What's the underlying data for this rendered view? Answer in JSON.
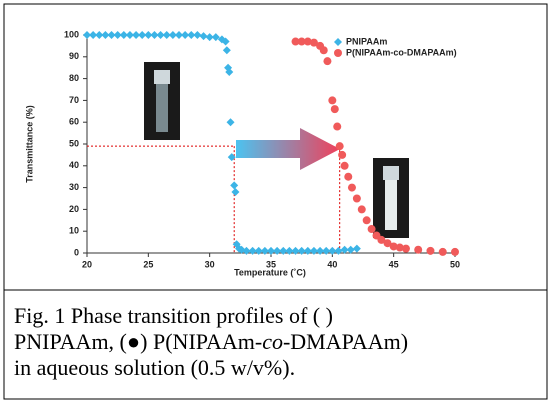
{
  "chart_data": {
    "type": "scatter",
    "xlabel": "Temperature (˚C)",
    "ylabel": "Transmittance (%)",
    "xlim": [
      20,
      50
    ],
    "ylim": [
      0,
      100
    ],
    "xticks": [
      20,
      25,
      30,
      35,
      40,
      45,
      50
    ],
    "yticks": [
      0,
      10,
      20,
      30,
      40,
      50,
      60,
      70,
      80,
      90,
      100
    ],
    "legend": "top-right",
    "guides": {
      "y": 49,
      "x": [
        32,
        40.6
      ]
    },
    "series": [
      {
        "name": "PNIPAAm",
        "color": "#3cb4e6",
        "marker": "diamond",
        "x": [
          20,
          20.5,
          21,
          21.5,
          22,
          22.5,
          23,
          23.5,
          24,
          24.5,
          25,
          25.5,
          26,
          26.5,
          27,
          27.5,
          28,
          28.5,
          29,
          29.5,
          30,
          30.5,
          31,
          31.3,
          31.4,
          31.5,
          31.6,
          31.7,
          31.8,
          32,
          32.1,
          32.2,
          32.4,
          32.6,
          33,
          33.5,
          34,
          34.5,
          35,
          35.5,
          36,
          36.5,
          37,
          37.5,
          38,
          38.5,
          39,
          39.5,
          40,
          40.5,
          41,
          41.5,
          42
        ],
        "values": [
          100,
          100,
          100,
          100,
          100,
          100,
          100,
          100,
          100,
          100,
          100,
          100,
          100,
          100,
          100,
          100,
          100,
          100,
          100,
          99.5,
          99,
          99,
          98,
          97,
          93,
          85,
          83,
          60,
          44,
          31,
          28,
          4,
          2,
          1.5,
          1,
          1,
          1,
          1,
          1,
          1,
          1,
          1,
          1,
          1,
          1,
          1,
          1,
          1,
          1,
          1,
          1.5,
          1.5,
          2
        ]
      },
      {
        "name": "P(NIPAAm-co-DMAPAAm)",
        "color": "#f05a5a",
        "marker": "circle",
        "x": [
          37,
          37.5,
          38,
          38.5,
          39,
          39.3,
          39.6,
          40,
          40.2,
          40.4,
          40.6,
          40.8,
          41,
          41.3,
          41.6,
          42,
          42.4,
          42.8,
          43.2,
          43.6,
          44,
          44.5,
          45,
          45.5,
          46,
          47,
          48,
          49,
          50
        ],
        "values": [
          97,
          97,
          97,
          96.5,
          95,
          93,
          88,
          70,
          66,
          58,
          49,
          45,
          40,
          35,
          30,
          25,
          20,
          15,
          11,
          8,
          6,
          4.5,
          3,
          2.5,
          2,
          1.5,
          1,
          0.5,
          0.5
        ]
      }
    ]
  },
  "caption": {
    "lines": [
      [
        {
          "text": "Fig. 1 Phase transition profiles of (    )"
        }
      ],
      [
        {
          "text": "PNIPAAm, (●) P(NIPAAm-"
        },
        {
          "text": "co",
          "italic": true
        },
        {
          "text": "-DMAPAAm)"
        }
      ],
      [
        {
          "text": "in aqueous solution (0.5 w/v%)."
        }
      ]
    ]
  }
}
